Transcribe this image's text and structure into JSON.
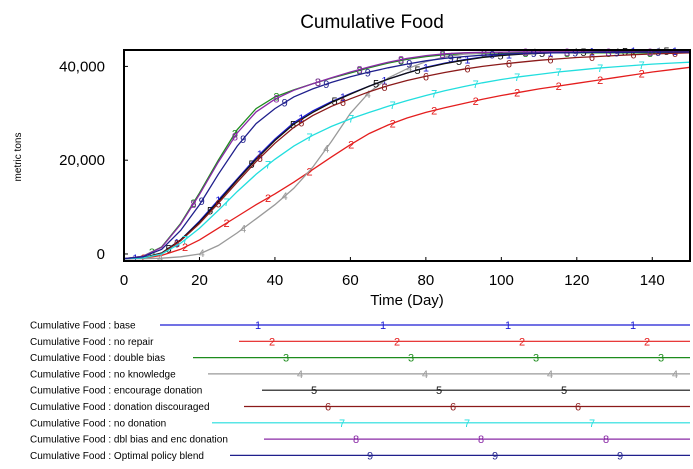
{
  "chart_data": {
    "type": "line",
    "title": "Cumulative Food",
    "xlabel": "Time (Day)",
    "ylabel": "metric tons",
    "xlim": [
      0,
      150
    ],
    "ylim": [
      -1500,
      43500
    ],
    "x_ticks": [
      "0",
      "20",
      "40",
      "60",
      "80",
      "100",
      "120",
      "140"
    ],
    "y_ticks": [
      "0",
      "20,000",
      "40,000"
    ],
    "legend_prefix": "Cumulative Food : ",
    "legend_placement": "bottom",
    "grid": false,
    "x": [
      0,
      5,
      10,
      15,
      20,
      25,
      30,
      35,
      40,
      45,
      50,
      55,
      60,
      65,
      70,
      75,
      80,
      85,
      90,
      95,
      100,
      105,
      110,
      115,
      120,
      125,
      130,
      135,
      140,
      145,
      150
    ],
    "series": [
      {
        "name": "base",
        "marker": "1",
        "color": "#1c1cd4",
        "values": [
          -1000,
          -800,
          200,
          3000,
          7000,
          11500,
          16000,
          20500,
          24500,
          28000,
          30500,
          32500,
          34200,
          35800,
          37300,
          38600,
          39800,
          40700,
          41400,
          42000,
          42400,
          42700,
          42900,
          43000,
          43100,
          43150,
          43200,
          43250,
          43300,
          43300,
          43300
        ]
      },
      {
        "name": "no repair",
        "marker": "2",
        "color": "#e41e1e",
        "values": [
          -1000,
          -900,
          -300,
          1000,
          3000,
          5500,
          8000,
          10500,
          12800,
          15300,
          18000,
          20700,
          23300,
          25700,
          27500,
          29000,
          30200,
          31200,
          32100,
          33000,
          33800,
          34500,
          35200,
          35800,
          36400,
          37000,
          37600,
          38200,
          38800,
          39300,
          39800
        ]
      },
      {
        "name": "double bias",
        "marker": "3",
        "color": "#1d8c1d",
        "values": [
          -1000,
          -500,
          1500,
          6500,
          13000,
          20000,
          26500,
          31000,
          33500,
          35000,
          36300,
          37500,
          38600,
          39700,
          40700,
          41500,
          42100,
          42500,
          42700,
          42800,
          42850,
          42900,
          42900,
          42900,
          42900,
          42900,
          42900,
          42900,
          42900,
          42900,
          42900
        ]
      },
      {
        "name": "no knowledge",
        "marker": "4",
        "color": "#9a9a9a",
        "values": [
          -1000,
          -1000,
          -900,
          -600,
          0,
          1800,
          4500,
          7500,
          10500,
          14000,
          18500,
          24000,
          30000,
          34500,
          37500,
          39500,
          41000,
          42000,
          42600,
          42900,
          43000,
          43100,
          43100,
          43150,
          43200,
          43200,
          43200,
          43250,
          43300,
          43300,
          43300
        ]
      },
      {
        "name": "encourage donation",
        "marker": "5",
        "color": "#111111",
        "values": [
          -1000,
          -800,
          200,
          3000,
          6800,
          11200,
          15800,
          20200,
          24200,
          27700,
          30200,
          32300,
          34100,
          35800,
          37300,
          38600,
          39700,
          40600,
          41300,
          41900,
          42300,
          42600,
          42800,
          42950,
          43050,
          43100,
          43150,
          43200,
          43250,
          43300,
          43300
        ]
      },
      {
        "name": "donation discouraged",
        "marker": "6",
        "color": "#8b1a1a",
        "values": [
          -1000,
          -850,
          100,
          2800,
          6500,
          10800,
          15300,
          19700,
          23600,
          27000,
          29500,
          31500,
          33100,
          34600,
          35900,
          37000,
          37900,
          38700,
          39400,
          40000,
          40500,
          40900,
          41300,
          41600,
          41900,
          42100,
          42300,
          42500,
          42650,
          42800,
          42900
        ]
      },
      {
        "name": "no donation",
        "marker": "7",
        "color": "#22dede",
        "values": [
          -1000,
          -850,
          0,
          2300,
          5500,
          9300,
          13300,
          17000,
          20200,
          23000,
          25300,
          27200,
          28800,
          30200,
          31500,
          32700,
          33800,
          34800,
          35700,
          36500,
          37200,
          37800,
          38300,
          38800,
          39200,
          39600,
          39900,
          40200,
          40500,
          40700,
          40900
        ]
      },
      {
        "name": "dbl bias and enc donation",
        "marker": "8",
        "color": "#8a2aa6",
        "values": [
          -1000,
          -500,
          1400,
          6300,
          12700,
          19600,
          25800,
          30300,
          33000,
          34900,
          36300,
          37600,
          38800,
          39900,
          40900,
          41700,
          42300,
          42700,
          42900,
          43000,
          43050,
          43100,
          43100,
          43100,
          43100,
          43100,
          43100,
          43100,
          43100,
          43100,
          43100
        ]
      },
      {
        "name": "Optimal policy blend",
        "marker": "9",
        "color": "#1f1f8c",
        "values": [
          -1000,
          -600,
          1000,
          5000,
          10500,
          17000,
          23000,
          27800,
          31000,
          33500,
          35200,
          36600,
          37800,
          38800,
          39700,
          40500,
          41200,
          41700,
          42100,
          42400,
          42600,
          42750,
          42850,
          42900,
          42950,
          43000,
          43000,
          43000,
          43050,
          43050,
          43050
        ]
      }
    ]
  }
}
